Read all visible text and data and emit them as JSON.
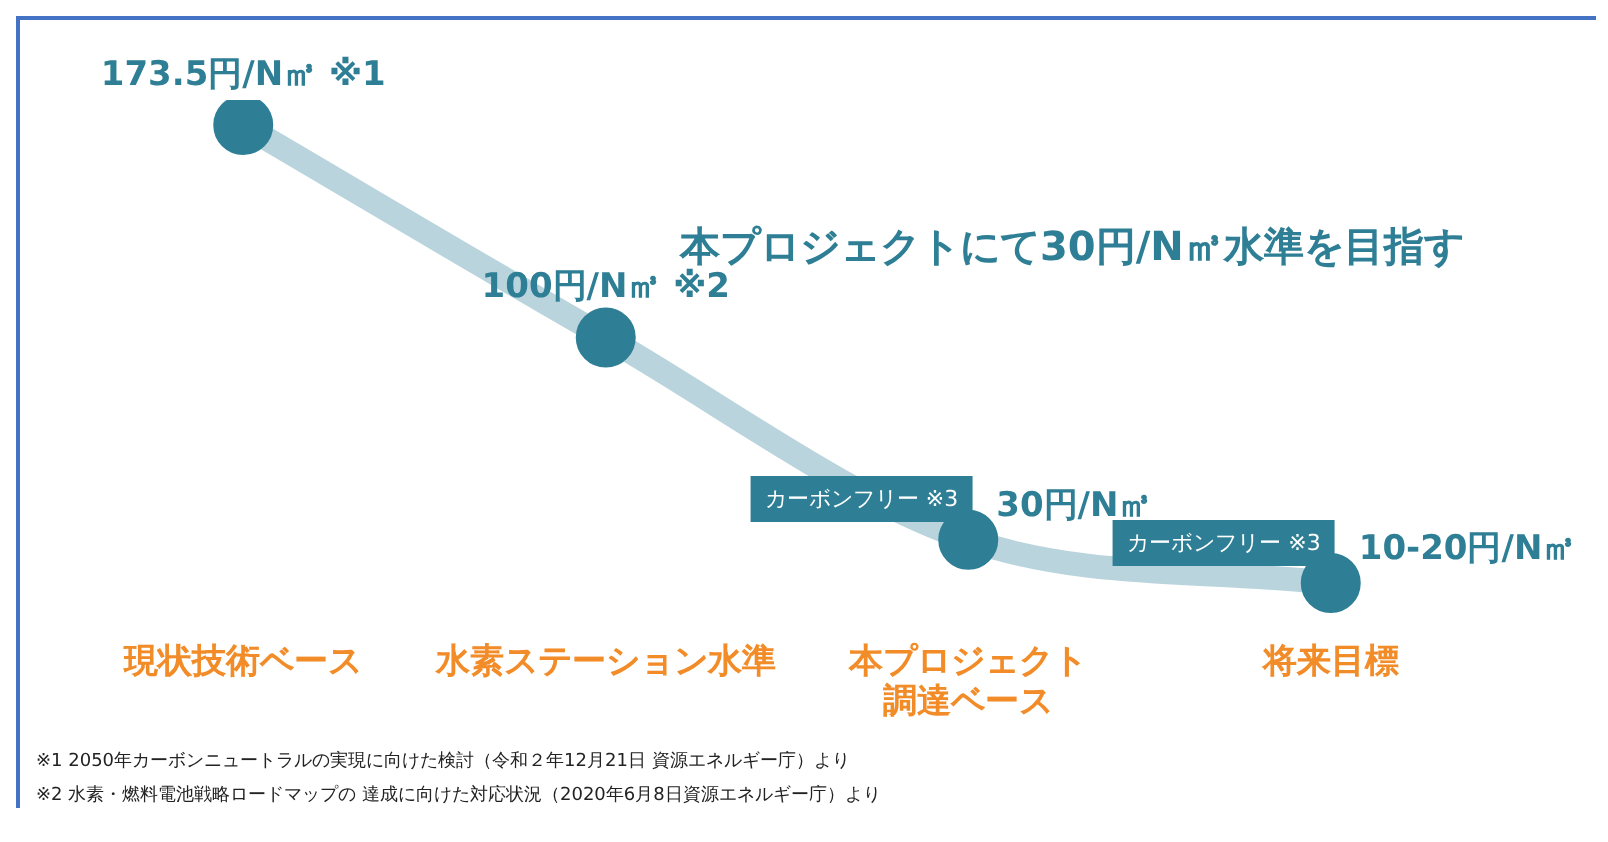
{
  "chart_data": {
    "type": "line",
    "title": "本プロジェクトにて30円/N㎥水準を目指す",
    "categories": [
      "現状技術ベース",
      "水素ステーション水準",
      "本プロジェクト調達ベース",
      "将来目標"
    ],
    "series": [
      {
        "color": "#2e7f95",
        "values": [
          173.5,
          100,
          30,
          15
        ],
        "value_labels": [
          "173.5円/N㎥ ※1",
          "100円/N㎥ ※2",
          "30円/N㎥",
          "10-20円/N㎥"
        ]
      }
    ],
    "marker": "circle",
    "line_style": "solid",
    "grid": false,
    "legend": false,
    "annotations": [
      {
        "text": "カーボンフリー ※3",
        "x": "本プロジェクト調達ベース",
        "y": 30
      },
      {
        "text": "カーボンフリー ※3",
        "x": "将来目標",
        "y": 15
      },
      "※1  2050年カーボンニュートラルの実現に向けた検討（令和２年12月21日 資源エネルギー庁）より",
      "※2  水素・燃料電池戦略ロードマップの 達成に向けた対応状況（2020年6月8日資源エネルギー庁）より"
    ]
  }
}
